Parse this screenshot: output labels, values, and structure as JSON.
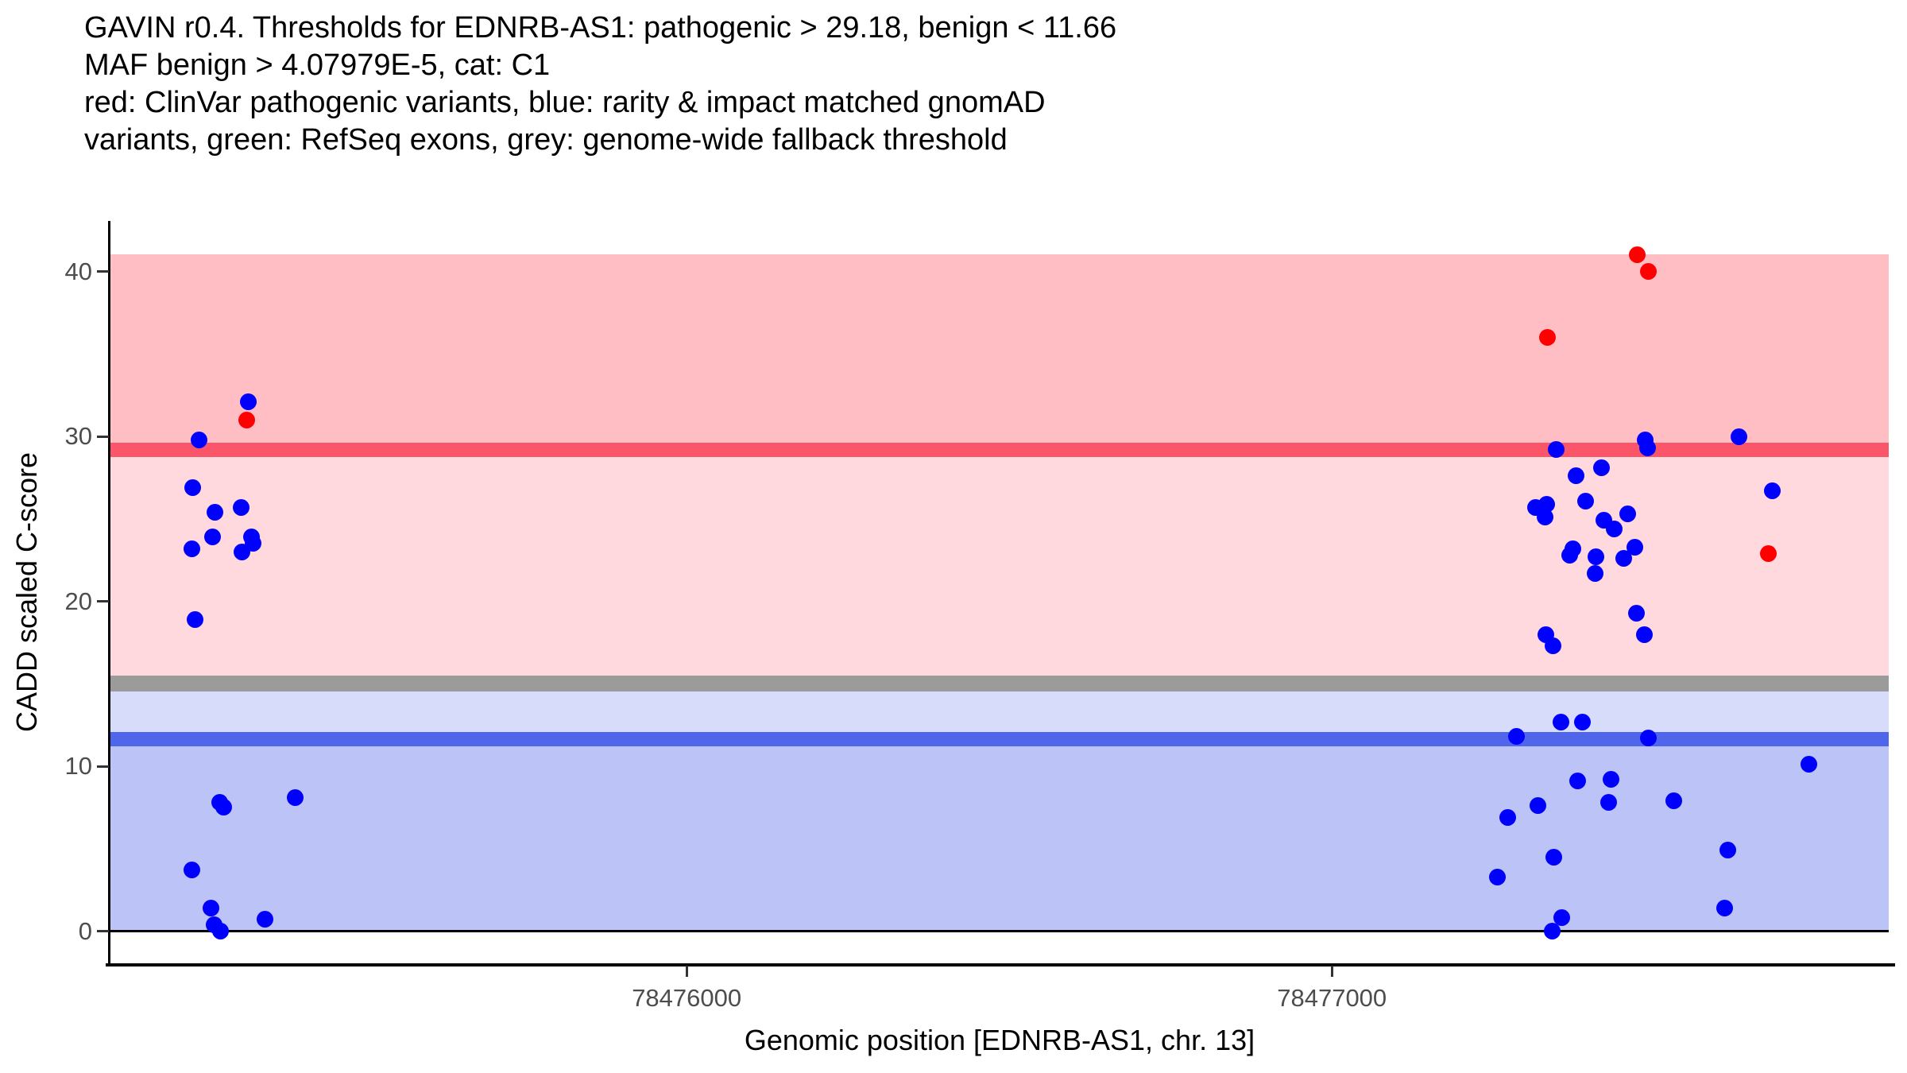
{
  "title": {
    "line1": "GAVIN r0.4. Thresholds for EDNRB-AS1: pathogenic > 29.18, benign < 11.66",
    "line2": "MAF benign > 4.07979E-5, cat: C1",
    "line3": "red: ClinVar pathogenic variants, blue: rarity & impact matched gnomAD",
    "line4": "variants, green: RefSeq exons, grey: genome-wide fallback threshold"
  },
  "chart_data": {
    "type": "scatter",
    "title": "GAVIN r0.4. Thresholds for EDNRB-AS1: pathogenic > 29.18, benign < 11.66 MAF benign > 4.07979E-5, cat: C1",
    "xlabel": "Genomic position [EDNRB-AS1, chr. 13]",
    "ylabel": "CADD scaled C-score",
    "x_axis": {
      "min": 78475107,
      "max": 78477863,
      "ticks": [
        78476000,
        78477000
      ],
      "grid": false
    },
    "y_axis": {
      "min": -2,
      "max": 43.07,
      "ticks": [
        0,
        10,
        20,
        30,
        40
      ],
      "grid": false
    },
    "thresholds": {
      "pathogenic_gt": 29.18,
      "benign_lt": 11.66,
      "maf_benign_gt": "4.07979E-5",
      "category": "C1",
      "genome_wide_fallback": 15,
      "gene": "EDNRB-AS1",
      "chromosome": "13"
    },
    "bands": [
      {
        "name": "pathogenic-zone",
        "from": 29.18,
        "to": 41.05,
        "color": "#FFBDC4"
      },
      {
        "name": "vous-zone-upper",
        "from": 15.02,
        "to": 29.18,
        "color": "#FFD9DD"
      },
      {
        "name": "vous-zone-lower",
        "from": 11.66,
        "to": 15.02,
        "color": "#D7DCFB"
      },
      {
        "name": "benign-zone",
        "from": 0,
        "to": 11.66,
        "color": "#BBC3F7"
      },
      {
        "name": "genome-wide-fallback-band",
        "from": 14.52,
        "to": 15.52,
        "color": "#9B9B9B"
      },
      {
        "name": "pathogenic-threshold-line",
        "from": 28.75,
        "to": 29.61,
        "color": "#FA5568"
      },
      {
        "name": "benign-threshold-line",
        "from": 11.23,
        "to": 12.09,
        "color": "#4F66EC"
      },
      {
        "name": "zero-line",
        "from": -0.06,
        "to": 0.06,
        "color": "#000000"
      }
    ],
    "series": [
      {
        "name": "ClinVar pathogenic variants",
        "color": "#FF0000",
        "points": [
          [
            78475318,
            31.0
          ],
          [
            78477334,
            36.0
          ],
          [
            78477473,
            41.0
          ],
          [
            78477490,
            40.0
          ],
          [
            78477677,
            22.9
          ]
        ]
      },
      {
        "name": "rarity & impact matched gnomAD variants",
        "color": "#0000FF",
        "points": [
          [
            78475321,
            32.1
          ],
          [
            78475244,
            29.8
          ],
          [
            78475235,
            26.9
          ],
          [
            78475310,
            25.7
          ],
          [
            78475269,
            25.4
          ],
          [
            78475326,
            23.9
          ],
          [
            78475265,
            23.9
          ],
          [
            78475328,
            23.5
          ],
          [
            78475233,
            23.2
          ],
          [
            78475311,
            23.0
          ],
          [
            78475238,
            18.9
          ],
          [
            78475393,
            8.1
          ],
          [
            78475276,
            7.8
          ],
          [
            78475283,
            7.5
          ],
          [
            78475233,
            3.7
          ],
          [
            78475263,
            1.4
          ],
          [
            78475347,
            0.7
          ],
          [
            78475268,
            0.4
          ],
          [
            78475277,
            0.0
          ],
          [
            78477631,
            30.0
          ],
          [
            78477486,
            29.8
          ],
          [
            78477489,
            29.3
          ],
          [
            78477348,
            29.2
          ],
          [
            78477418,
            28.1
          ],
          [
            78477378,
            27.6
          ],
          [
            78477682,
            26.7
          ],
          [
            78477393,
            26.1
          ],
          [
            78477333,
            25.9
          ],
          [
            78477316,
            25.7
          ],
          [
            78477458,
            25.3
          ],
          [
            78477331,
            25.1
          ],
          [
            78477422,
            24.9
          ],
          [
            78477438,
            24.4
          ],
          [
            78477469,
            23.3
          ],
          [
            78477374,
            23.2
          ],
          [
            78477369,
            22.8
          ],
          [
            78477409,
            22.7
          ],
          [
            78477452,
            22.6
          ],
          [
            78477408,
            21.7
          ],
          [
            78477472,
            19.3
          ],
          [
            78477484,
            18.0
          ],
          [
            78477332,
            18.0
          ],
          [
            78477343,
            17.3
          ],
          [
            78477355,
            12.7
          ],
          [
            78477388,
            12.7
          ],
          [
            78477286,
            11.8
          ],
          [
            78477491,
            11.7
          ],
          [
            78477739,
            10.1
          ],
          [
            78477433,
            9.2
          ],
          [
            78477381,
            9.1
          ],
          [
            78477530,
            7.9
          ],
          [
            78477429,
            7.8
          ],
          [
            78477319,
            7.6
          ],
          [
            78477272,
            6.9
          ],
          [
            78477614,
            4.9
          ],
          [
            78477344,
            4.5
          ],
          [
            78477256,
            3.3
          ],
          [
            78477609,
            1.4
          ],
          [
            78477356,
            0.8
          ],
          [
            78477342,
            0.0
          ]
        ]
      }
    ],
    "legend_position": "none"
  },
  "colors": {
    "pathogenic_point": "#FF0000",
    "benign_matched_point": "#0000FF",
    "pathogenic_line": "#FA5568",
    "benign_line": "#4F66EC",
    "fallback_band": "#9B9B9B",
    "axis_text": "#4D4D4D",
    "axis_line": "#000000"
  }
}
